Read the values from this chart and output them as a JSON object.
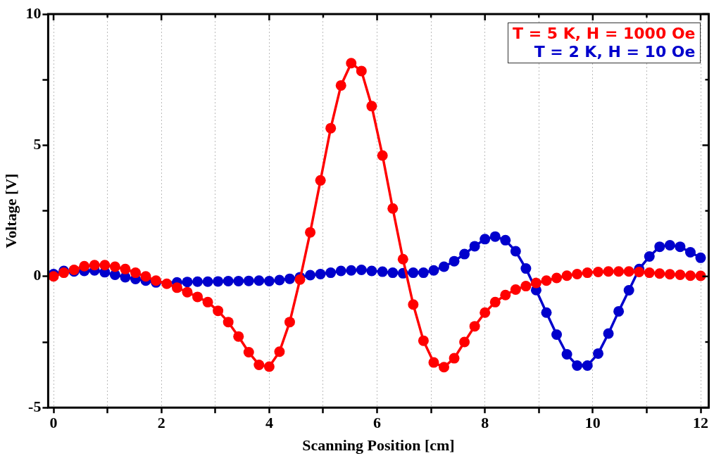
{
  "chart_data": {
    "type": "line",
    "xlabel": "Scanning Position [cm]",
    "ylabel": "Voltage [V]",
    "x": [
      0,
      0.19,
      0.38,
      0.57,
      0.76,
      0.95,
      1.14,
      1.33,
      1.52,
      1.71,
      1.9,
      2.1,
      2.29,
      2.48,
      2.67,
      2.86,
      3.05,
      3.24,
      3.43,
      3.62,
      3.81,
      4,
      4.19,
      4.38,
      4.57,
      4.76,
      4.95,
      5.14,
      5.33,
      5.52,
      5.71,
      5.9,
      6.1,
      6.29,
      6.48,
      6.67,
      6.86,
      7.05,
      7.24,
      7.43,
      7.62,
      7.81,
      8,
      8.19,
      8.38,
      8.57,
      8.76,
      8.95,
      9.14,
      9.33,
      9.52,
      9.71,
      9.9,
      10.1,
      10.29,
      10.48,
      10.67,
      10.86,
      11.05,
      11.24,
      11.43,
      11.62,
      11.81,
      12
    ],
    "series": [
      {
        "name": "T = 5 K, H = 1000 Oe",
        "color": "#ff0000",
        "values": [
          0,
          0.14,
          0.25,
          0.39,
          0.43,
          0.43,
          0.37,
          0.28,
          0.14,
          0,
          -0.16,
          -0.28,
          -0.43,
          -0.6,
          -0.78,
          -0.98,
          -1.31,
          -1.74,
          -2.29,
          -2.89,
          -3.37,
          -3.44,
          -2.87,
          -1.74,
          -0.12,
          1.68,
          3.66,
          5.65,
          7.28,
          8.13,
          7.83,
          6.49,
          4.61,
          2.59,
          0.66,
          -1.07,
          -2.45,
          -3.28,
          -3.46,
          -3.12,
          -2.5,
          -1.9,
          -1.38,
          -0.98,
          -0.71,
          -0.5,
          -0.37,
          -0.25,
          -0.16,
          -0.06,
          0.03,
          0.09,
          0.14,
          0.17,
          0.19,
          0.19,
          0.19,
          0.17,
          0.14,
          0.11,
          0.08,
          0.06,
          0.03,
          0.02
        ]
      },
      {
        "name": "T = 2 K, H = 10 Oe",
        "color": "#0000cc",
        "values": [
          0.09,
          0.21,
          0.19,
          0.21,
          0.23,
          0.16,
          0.06,
          -0.03,
          -0.1,
          -0.16,
          -0.23,
          null,
          -0.23,
          -0.21,
          -0.2,
          -0.2,
          -0.19,
          -0.18,
          -0.18,
          -0.17,
          -0.16,
          -0.18,
          -0.14,
          -0.09,
          -0.03,
          0.05,
          0.09,
          0.14,
          0.21,
          0.23,
          0.25,
          0.21,
          0.18,
          0.14,
          0.12,
          0.14,
          0.14,
          0.23,
          0.37,
          0.58,
          0.85,
          1.15,
          1.42,
          1.52,
          1.38,
          0.96,
          0.3,
          -0.52,
          -1.38,
          -2.22,
          -2.97,
          -3.4,
          -3.4,
          -2.94,
          -2.18,
          -1.33,
          -0.53,
          0.28,
          0.76,
          1.13,
          1.19,
          1.13,
          0.92,
          0.71
        ]
      }
    ],
    "xlim": [
      -0.1,
      12.15
    ],
    "xticks": [
      0,
      {
        "value": 1,
        "label": null
      },
      2,
      {
        "value": 3,
        "label": null
      },
      4,
      {
        "value": 5,
        "label": null
      },
      6,
      {
        "value": 7,
        "label": null
      },
      8,
      {
        "value": 9,
        "label": null
      },
      10,
      {
        "value": 11,
        "label": null
      },
      12
    ],
    "ylim": [
      -5,
      10
    ],
    "yticks": [
      -5,
      {
        "value": -2.5,
        "label": null
      },
      0,
      {
        "value": 2.5,
        "label": null
      },
      5,
      {
        "value": 7.5,
        "label": null
      },
      10
    ],
    "grid": "x",
    "legend": "top right",
    "marker": "circle",
    "line_style": "solid"
  }
}
